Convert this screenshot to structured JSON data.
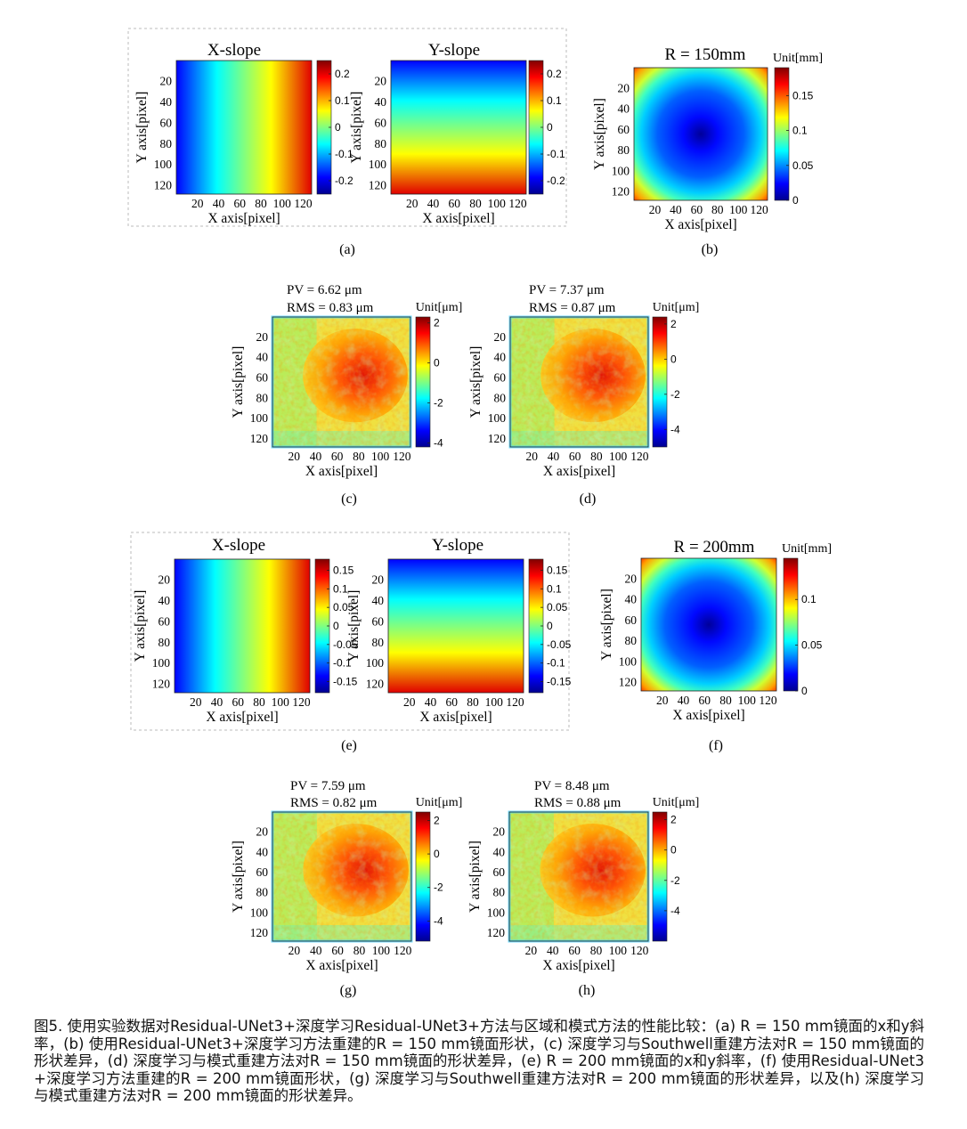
{
  "caption": "图5. 使用实验数据对Residual-UNet3+深度学习Residual-UNet3+方法与区域和模式方法的性能比较：(a) R = 150 mm镜面的x和y斜率，(b) 使用Residual-UNet3+深度学习方法重建的R = 150 mm镜面形状，(c) 深度学习与Southwell重建方法对R = 150 mm镜面的形状差异，(d) 深度学习与模式重建方法对R = 150 mm镜面的形状差异，(e) R = 200 mm镜面的x和y斜率，(f) 使用Residual-UNet3+深度学习方法重建的R = 200 mm镜面形状，(g) 深度学习与Southwell重建方法对R = 200 mm镜面的形状差异，以及(h) 深度学习与模式重建方法对R = 200 mm镜面的形状差异。",
  "axis": {
    "xlabel": "X axis[pixel]",
    "ylabel": "Y axis[pixel]"
  },
  "panel_labels": [
    "(a)",
    "(b)",
    "(c)",
    "(d)",
    "(e)",
    "(f)",
    "(g)",
    "(h)"
  ],
  "chart_data": [
    {
      "id": "a-x",
      "type": "heatmap",
      "pattern": "xgrad",
      "title": "X-slope",
      "unit": "",
      "xticks": [
        "20",
        "40",
        "60",
        "80",
        "100",
        "120"
      ],
      "yticks": [
        "20",
        "40",
        "60",
        "80",
        "100",
        "120"
      ],
      "colorbar_ticks": [
        "0.2",
        "0.1",
        "0",
        "-0.1",
        "-0.2"
      ],
      "colorbar_range": [
        -0.25,
        0.25
      ]
    },
    {
      "id": "a-y",
      "type": "heatmap",
      "pattern": "ygrad",
      "title": "Y-slope",
      "unit": "",
      "xticks": [
        "20",
        "40",
        "60",
        "80",
        "100",
        "120"
      ],
      "yticks": [
        "20",
        "40",
        "60",
        "80",
        "100",
        "120"
      ],
      "colorbar_ticks": [
        "0.2",
        "0.1",
        "0",
        "-0.1",
        "-0.2"
      ],
      "colorbar_range": [
        -0.25,
        0.25
      ]
    },
    {
      "id": "b",
      "type": "heatmap",
      "pattern": "radial",
      "title": "R = 150mm",
      "unit": "Unit[mm]",
      "xticks": [
        "20",
        "40",
        "60",
        "80",
        "100",
        "120"
      ],
      "yticks": [
        "20",
        "40",
        "60",
        "80",
        "100",
        "120"
      ],
      "colorbar_ticks": [
        "0.15",
        "0.1",
        "0.05",
        "0"
      ],
      "colorbar_range": [
        0,
        0.19
      ]
    },
    {
      "id": "c",
      "type": "heatmap",
      "pattern": "noise",
      "pv": "PV = 6.62 μm",
      "rms": "RMS = 0.83 μm",
      "unit": "Unit[μm]",
      "xticks": [
        "20",
        "40",
        "60",
        "80",
        "100",
        "120"
      ],
      "yticks": [
        "20",
        "40",
        "60",
        "80",
        "100",
        "120"
      ],
      "colorbar_ticks": [
        "2",
        "0",
        "-2",
        "-4"
      ],
      "colorbar_range": [
        -4.2,
        2.3
      ]
    },
    {
      "id": "d",
      "type": "heatmap",
      "pattern": "noise",
      "pv": "PV = 7.37 μm",
      "rms": "RMS = 0.87 μm",
      "unit": "Unit[μm]",
      "xticks": [
        "20",
        "40",
        "60",
        "80",
        "100",
        "120"
      ],
      "yticks": [
        "20",
        "40",
        "60",
        "80",
        "100",
        "120"
      ],
      "colorbar_ticks": [
        "2",
        "0",
        "-2",
        "-4"
      ],
      "colorbar_range": [
        -5,
        2.4
      ]
    },
    {
      "id": "e-x",
      "type": "heatmap",
      "pattern": "xgrad",
      "title": "X-slope",
      "unit": "",
      "xticks": [
        "20",
        "40",
        "60",
        "80",
        "100",
        "120"
      ],
      "yticks": [
        "20",
        "40",
        "60",
        "80",
        "100",
        "120"
      ],
      "colorbar_ticks": [
        "0.15",
        "0.1",
        "0.05",
        "0",
        "-0.05",
        "-0.1",
        "-0.15"
      ],
      "colorbar_range": [
        -0.18,
        0.18
      ]
    },
    {
      "id": "e-y",
      "type": "heatmap",
      "pattern": "ygrad",
      "title": "Y-slope",
      "unit": "",
      "xticks": [
        "20",
        "40",
        "60",
        "80",
        "100",
        "120"
      ],
      "yticks": [
        "20",
        "40",
        "60",
        "80",
        "100",
        "120"
      ],
      "colorbar_ticks": [
        "0.15",
        "0.1",
        "0.05",
        "0",
        "-0.05",
        "-0.1",
        "-0.15"
      ],
      "colorbar_range": [
        -0.18,
        0.18
      ]
    },
    {
      "id": "f",
      "type": "heatmap",
      "pattern": "radial",
      "title": "R = 200mm",
      "unit": "Unit[mm]",
      "xticks": [
        "20",
        "40",
        "60",
        "80",
        "100",
        "120"
      ],
      "yticks": [
        "20",
        "40",
        "60",
        "80",
        "100",
        "120"
      ],
      "colorbar_ticks": [
        "0.1",
        "0.05",
        "0"
      ],
      "colorbar_range": [
        0,
        0.145
      ]
    },
    {
      "id": "g",
      "type": "heatmap",
      "pattern": "noise",
      "pv": "PV = 7.59 μm",
      "rms": "RMS = 0.82 μm",
      "unit": "Unit[μm]",
      "xticks": [
        "20",
        "40",
        "60",
        "80",
        "100",
        "120"
      ],
      "yticks": [
        "20",
        "40",
        "60",
        "80",
        "100",
        "120"
      ],
      "colorbar_ticks": [
        "2",
        "0",
        "-2",
        "-4"
      ],
      "colorbar_range": [
        -5.2,
        2.5
      ]
    },
    {
      "id": "h",
      "type": "heatmap",
      "pattern": "noise",
      "pv": "PV = 8.48 μm",
      "rms": "RMS = 0.88 μm",
      "unit": "Unit[μm]",
      "xticks": [
        "20",
        "40",
        "60",
        "80",
        "100",
        "120"
      ],
      "yticks": [
        "20",
        "40",
        "60",
        "80",
        "100",
        "120"
      ],
      "colorbar_ticks": [
        "2",
        "0",
        "-2",
        "-4"
      ],
      "colorbar_range": [
        -6,
        2.5
      ]
    }
  ]
}
